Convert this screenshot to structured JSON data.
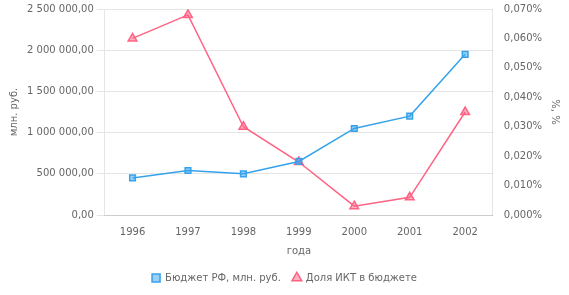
{
  "chart_data": {
    "type": "line",
    "categories": [
      "1996",
      "1997",
      "1998",
      "1999",
      "2000",
      "2001",
      "2002"
    ],
    "xlabel": "года",
    "ylabel": "млн. руб.",
    "y2label": "%, %",
    "series": [
      {
        "name": "Бюджет РФ, млн. руб.",
        "values": [
          450000,
          540000,
          500000,
          650000,
          1050000,
          1200000,
          1950000
        ],
        "marker": "square"
      },
      {
        "name": "Доля ИКТ в бюджете",
        "values": [
          0.0006,
          0.00068,
          0.0003,
          0.00018,
          3e-05,
          6e-05,
          0.00035
        ],
        "marker": "triangle",
        "axis": "y2"
      }
    ],
    "ylim": [
      0,
      2500000
    ],
    "yticks": [
      {
        "value": 0,
        "label": "0,00"
      },
      {
        "value": 500000,
        "label": "500 000,00"
      },
      {
        "value": 1000000,
        "label": "1 000 000,00"
      },
      {
        "value": 1500000,
        "label": "1 500 000,00"
      },
      {
        "value": 2000000,
        "label": "2 000 000,00"
      },
      {
        "value": 2500000,
        "label": "2 500 000,00"
      }
    ],
    "y2lim": [
      0,
      0.0007
    ],
    "y2ticks": [
      {
        "value": 0,
        "label": "0,000%"
      },
      {
        "value": 0.0001,
        "label": "0,010%"
      },
      {
        "value": 0.0002,
        "label": "0,020%"
      },
      {
        "value": 0.0003,
        "label": "0,030%"
      },
      {
        "value": 0.0004,
        "label": "0,040%"
      },
      {
        "value": 0.0005,
        "label": "0,050%"
      },
      {
        "value": 0.0006,
        "label": "0,060%"
      },
      {
        "value": 0.0007,
        "label": "0,070%"
      }
    ],
    "grid": true,
    "legend": "bottom"
  }
}
